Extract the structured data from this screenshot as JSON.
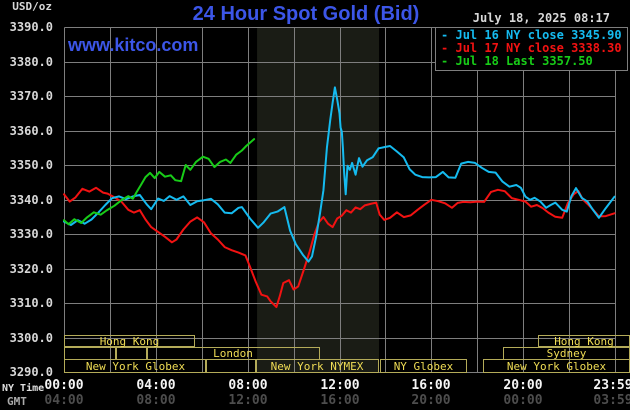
{
  "header": {
    "unit_label": "USD/oz",
    "title": "24 Hour Spot Gold (Bid)",
    "datetime": "July 18, 2025 08:17",
    "watermark": "www.kitco.com"
  },
  "legend": {
    "dash": "-",
    "items": [
      {
        "label": "Jul 16 NY close 3345.90",
        "color": "#15bbf0"
      },
      {
        "label": "Jul 17 NY close 3338.30",
        "color": "#f21212"
      },
      {
        "label": "Jul 18 Last 3357.50",
        "color": "#18cc18"
      }
    ]
  },
  "axis": {
    "ny_time_label": "NY Time",
    "gmt_label": "GMT",
    "ny_ticks": [
      {
        "label": "00:00",
        "hour": 0
      },
      {
        "label": "04:00",
        "hour": 4
      },
      {
        "label": "08:00",
        "hour": 8
      },
      {
        "label": "12:00",
        "hour": 12
      },
      {
        "label": "16:00",
        "hour": 16
      },
      {
        "label": "20:00",
        "hour": 20
      },
      {
        "label": "23:59",
        "hour": 23.93
      }
    ],
    "gmt_ticks": [
      {
        "label": "04:00",
        "hour": 0
      },
      {
        "label": "08:00",
        "hour": 4
      },
      {
        "label": "12:00",
        "hour": 8
      },
      {
        "label": "16:00",
        "hour": 12
      },
      {
        "label": "20:00",
        "hour": 16
      },
      {
        "label": "00:00",
        "hour": 20
      },
      {
        "label": "03:59",
        "hour": 23.93
      }
    ],
    "y_ticks": [
      "3390.0",
      "3380.0",
      "3370.0",
      "3360.0",
      "3350.0",
      "3340.0",
      "3330.0",
      "3320.0",
      "3310.0",
      "3300.0",
      "3290.0"
    ]
  },
  "sessions": [
    {
      "row": 1,
      "label": "Hong Kong",
      "start": 0,
      "end": 5.62
    },
    {
      "row": 1,
      "label": "Hong Kong",
      "start": 20.65,
      "end": 24.57
    },
    {
      "row": 2,
      "label": "",
      "start": 0,
      "end": 2.22
    },
    {
      "row": 2,
      "label": "",
      "start": 2.22,
      "end": 3.57
    },
    {
      "row": 2,
      "label": "London",
      "start": 3.57,
      "end": 11.06
    },
    {
      "row": 2,
      "label": "Sydney",
      "start": 19.12,
      "end": 24.57
    },
    {
      "row": 3,
      "label": "New York Globex",
      "start": 0,
      "end": 6.14
    },
    {
      "row": 3,
      "label": "",
      "start": 6.14,
      "end": 8.32
    },
    {
      "row": 3,
      "label": "New York NYMEX",
      "start": 8.32,
      "end": 13.63
    },
    {
      "row": 3,
      "label": "NY Globex",
      "start": 13.76,
      "end": 17.47
    },
    {
      "row": 3,
      "label": "New York Globex",
      "start": 18.25,
      "end": 24.57
    }
  ],
  "colors": {
    "background": "#000000",
    "grid": "#7e7e7e",
    "shaded_band": "#1a1c15",
    "title_blue": "#3c56e8",
    "session_border": "#b4ab59",
    "session_text": "#f0dd55",
    "cyan": "#15bbf0",
    "red": "#f21212",
    "green": "#18cc18"
  },
  "chart_data": {
    "type": "line",
    "title": "24 Hour Spot Gold (Bid)",
    "ylabel": "USD/oz",
    "ylim": [
      3290,
      3390
    ],
    "xlim_hours": [
      0,
      24
    ],
    "x_axis_label": "NY Time",
    "grid": true,
    "gridline_step_hours": 2,
    "gridline_step_price": 10,
    "shaded_band_hours": [
      8.41,
      13.72
    ],
    "legend_position": "top-right",
    "series": [
      {
        "name": "Jul 17 (red)",
        "close": 3338.3,
        "color": "#f21212",
        "points": [
          [
            0,
            3341.5
          ],
          [
            0.25,
            3339.4
          ],
          [
            0.5,
            3340.6
          ],
          [
            0.8,
            3343.1
          ],
          [
            1.1,
            3342.3
          ],
          [
            1.4,
            3343.4
          ],
          [
            1.7,
            3342.0
          ],
          [
            1.9,
            3341.7
          ],
          [
            2.2,
            3340.6
          ],
          [
            2.5,
            3339.4
          ],
          [
            2.8,
            3337.0
          ],
          [
            3.05,
            3336.2
          ],
          [
            3.3,
            3336.9
          ],
          [
            3.55,
            3334.2
          ],
          [
            3.8,
            3332.0
          ],
          [
            4.1,
            3330.6
          ],
          [
            4.4,
            3329.2
          ],
          [
            4.7,
            3327.6
          ],
          [
            4.9,
            3328.4
          ],
          [
            5.2,
            3331.3
          ],
          [
            5.5,
            3333.6
          ],
          [
            5.8,
            3334.8
          ],
          [
            6.1,
            3333.4
          ],
          [
            6.4,
            3330.2
          ],
          [
            6.7,
            3328.4
          ],
          [
            7.0,
            3326.2
          ],
          [
            7.3,
            3325.3
          ],
          [
            7.6,
            3324.6
          ],
          [
            7.9,
            3323.8
          ],
          [
            8.1,
            3320.5
          ],
          [
            8.35,
            3316.2
          ],
          [
            8.6,
            3312.4
          ],
          [
            8.85,
            3311.9
          ],
          [
            9.0,
            3310.5
          ],
          [
            9.25,
            3308.8
          ],
          [
            9.4,
            3312.0
          ],
          [
            9.55,
            3315.8
          ],
          [
            9.8,
            3316.6
          ],
          [
            10.0,
            3313.9
          ],
          [
            10.2,
            3314.8
          ],
          [
            10.45,
            3319.7
          ],
          [
            10.7,
            3325.0
          ],
          [
            10.9,
            3329.7
          ],
          [
            11.1,
            3333.4
          ],
          [
            11.3,
            3334.9
          ],
          [
            11.5,
            3333.0
          ],
          [
            11.7,
            3332.0
          ],
          [
            11.9,
            3334.5
          ],
          [
            12.1,
            3335.3
          ],
          [
            12.3,
            3336.9
          ],
          [
            12.5,
            3336.2
          ],
          [
            12.7,
            3337.7
          ],
          [
            12.9,
            3337.2
          ],
          [
            13.1,
            3338.3
          ],
          [
            13.4,
            3338.8
          ],
          [
            13.6,
            3339.1
          ],
          [
            13.75,
            3335.6
          ],
          [
            13.95,
            3334.1
          ],
          [
            14.2,
            3334.7
          ],
          [
            14.5,
            3336.3
          ],
          [
            14.8,
            3334.9
          ],
          [
            15.1,
            3335.4
          ],
          [
            15.4,
            3337.0
          ],
          [
            15.7,
            3338.5
          ],
          [
            16.0,
            3339.9
          ],
          [
            16.3,
            3339.5
          ],
          [
            16.6,
            3338.9
          ],
          [
            16.9,
            3337.6
          ],
          [
            17.15,
            3339.0
          ],
          [
            17.4,
            3339.3
          ],
          [
            17.7,
            3339.2
          ],
          [
            18.0,
            3339.4
          ],
          [
            18.3,
            3339.3
          ],
          [
            18.6,
            3342.2
          ],
          [
            18.9,
            3342.8
          ],
          [
            19.2,
            3342.4
          ],
          [
            19.5,
            3340.4
          ],
          [
            19.8,
            3339.9
          ],
          [
            20.1,
            3339.4
          ],
          [
            20.35,
            3337.9
          ],
          [
            20.6,
            3338.4
          ],
          [
            20.85,
            3337.5
          ],
          [
            21.1,
            3336.2
          ],
          [
            21.4,
            3335.0
          ],
          [
            21.7,
            3334.7
          ],
          [
            21.95,
            3339.0
          ],
          [
            22.2,
            3341.5
          ],
          [
            22.4,
            3342.5
          ],
          [
            22.6,
            3340.0
          ],
          [
            22.85,
            3338.4
          ],
          [
            23.05,
            3337.0
          ],
          [
            23.3,
            3335.1
          ],
          [
            23.6,
            3335.2
          ],
          [
            23.98,
            3336.0
          ]
        ]
      },
      {
        "name": "Jul 16 (cyan)",
        "close": 3345.9,
        "color": "#15bbf0",
        "points": [
          [
            0,
            3333.6
          ],
          [
            0.3,
            3332.6
          ],
          [
            0.6,
            3334.0
          ],
          [
            0.9,
            3333.0
          ],
          [
            1.2,
            3334.2
          ],
          [
            1.5,
            3336.2
          ],
          [
            1.8,
            3338.4
          ],
          [
            2.1,
            3340.4
          ],
          [
            2.4,
            3340.9
          ],
          [
            2.7,
            3340.1
          ],
          [
            3.0,
            3340.9
          ],
          [
            3.3,
            3341.3
          ],
          [
            3.6,
            3338.6
          ],
          [
            3.8,
            3337.2
          ],
          [
            4.1,
            3340.3
          ],
          [
            4.35,
            3339.6
          ],
          [
            4.6,
            3341.0
          ],
          [
            4.9,
            3339.9
          ],
          [
            5.2,
            3340.9
          ],
          [
            5.5,
            3338.4
          ],
          [
            5.8,
            3339.5
          ],
          [
            6.1,
            3339.8
          ],
          [
            6.4,
            3340.2
          ],
          [
            6.7,
            3338.6
          ],
          [
            7.0,
            3336.2
          ],
          [
            7.3,
            3336.0
          ],
          [
            7.6,
            3337.6
          ],
          [
            7.75,
            3337.8
          ],
          [
            8.1,
            3334.5
          ],
          [
            8.45,
            3331.8
          ],
          [
            8.7,
            3333.4
          ],
          [
            9.0,
            3335.9
          ],
          [
            9.3,
            3336.5
          ],
          [
            9.6,
            3337.8
          ],
          [
            9.85,
            3331.0
          ],
          [
            10.1,
            3327.0
          ],
          [
            10.4,
            3324.0
          ],
          [
            10.65,
            3322.0
          ],
          [
            10.8,
            3323.5
          ],
          [
            11.0,
            3329.8
          ],
          [
            11.15,
            3336.0
          ],
          [
            11.3,
            3342.6
          ],
          [
            11.45,
            3355.0
          ],
          [
            11.6,
            3363.2
          ],
          [
            11.7,
            3368.0
          ],
          [
            11.8,
            3372.5
          ],
          [
            11.9,
            3369.0
          ],
          [
            12.0,
            3365.0
          ],
          [
            12.05,
            3360.8
          ],
          [
            12.1,
            3359.7
          ],
          [
            12.15,
            3355.0
          ],
          [
            12.2,
            3348.0
          ],
          [
            12.27,
            3341.5
          ],
          [
            12.35,
            3349.8
          ],
          [
            12.45,
            3348.6
          ],
          [
            12.55,
            3350.6
          ],
          [
            12.7,
            3347.2
          ],
          [
            12.85,
            3352.0
          ],
          [
            13.0,
            3349.5
          ],
          [
            13.2,
            3351.4
          ],
          [
            13.45,
            3352.3
          ],
          [
            13.7,
            3354.8
          ],
          [
            13.95,
            3355.2
          ],
          [
            14.2,
            3355.5
          ],
          [
            14.5,
            3353.9
          ],
          [
            14.8,
            3352.2
          ],
          [
            15.05,
            3348.8
          ],
          [
            15.3,
            3347.2
          ],
          [
            15.6,
            3346.5
          ],
          [
            15.9,
            3346.4
          ],
          [
            16.2,
            3346.5
          ],
          [
            16.5,
            3348.0
          ],
          [
            16.75,
            3346.4
          ],
          [
            17.05,
            3346.3
          ],
          [
            17.3,
            3350.4
          ],
          [
            17.6,
            3350.9
          ],
          [
            17.9,
            3350.6
          ],
          [
            18.2,
            3349.2
          ],
          [
            18.5,
            3348.0
          ],
          [
            18.8,
            3347.8
          ],
          [
            19.1,
            3345.2
          ],
          [
            19.4,
            3343.7
          ],
          [
            19.7,
            3344.2
          ],
          [
            19.9,
            3343.4
          ],
          [
            20.1,
            3340.8
          ],
          [
            20.3,
            3339.9
          ],
          [
            20.5,
            3340.5
          ],
          [
            20.75,
            3339.4
          ],
          [
            21.0,
            3337.6
          ],
          [
            21.2,
            3338.4
          ],
          [
            21.4,
            3339.1
          ],
          [
            21.7,
            3337.0
          ],
          [
            21.9,
            3336.5
          ],
          [
            22.1,
            3341.0
          ],
          [
            22.3,
            3343.3
          ],
          [
            22.55,
            3340.5
          ],
          [
            22.8,
            3339.4
          ],
          [
            23.05,
            3336.9
          ],
          [
            23.3,
            3334.7
          ],
          [
            23.6,
            3337.5
          ],
          [
            23.98,
            3340.8
          ]
        ]
      },
      {
        "name": "Jul 18 (green)",
        "last": 3357.5,
        "color": "#18cc18",
        "points": [
          [
            0,
            3334.0
          ],
          [
            0.2,
            3332.8
          ],
          [
            0.45,
            3334.3
          ],
          [
            0.75,
            3333.2
          ],
          [
            1.0,
            3334.8
          ],
          [
            1.3,
            3336.3
          ],
          [
            1.6,
            3335.6
          ],
          [
            1.85,
            3336.8
          ],
          [
            2.2,
            3338.2
          ],
          [
            2.5,
            3339.8
          ],
          [
            2.8,
            3341.0
          ],
          [
            3.0,
            3340.2
          ],
          [
            3.15,
            3342.0
          ],
          [
            3.35,
            3344.2
          ],
          [
            3.55,
            3346.5
          ],
          [
            3.75,
            3347.7
          ],
          [
            3.95,
            3346.2
          ],
          [
            4.15,
            3348.0
          ],
          [
            4.4,
            3346.6
          ],
          [
            4.65,
            3347.0
          ],
          [
            4.85,
            3345.6
          ],
          [
            5.1,
            3345.3
          ],
          [
            5.3,
            3350.0
          ],
          [
            5.5,
            3348.6
          ],
          [
            5.75,
            3350.9
          ],
          [
            6.05,
            3352.4
          ],
          [
            6.3,
            3351.8
          ],
          [
            6.55,
            3349.4
          ],
          [
            6.8,
            3350.9
          ],
          [
            7.05,
            3351.6
          ],
          [
            7.25,
            3350.6
          ],
          [
            7.5,
            3353.0
          ],
          [
            7.75,
            3354.2
          ],
          [
            7.95,
            3355.6
          ],
          [
            8.28,
            3357.5
          ]
        ]
      }
    ]
  }
}
